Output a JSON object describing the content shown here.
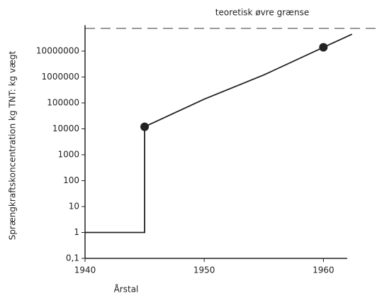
{
  "chart_data": {
    "type": "line",
    "xlabel": "Årstal",
    "ylabel": "Sprængkraftskoncentration kg TNT: kg vægt",
    "log_y": true,
    "xlim": [
      1940,
      1962
    ],
    "xticks": [
      1940,
      1950,
      1960
    ],
    "ylim": [
      0.1,
      100000000
    ],
    "yticks": [
      {
        "value": 0.1,
        "label": "0,1"
      },
      1,
      10,
      100,
      1000,
      10000,
      100000,
      1000000,
      10000000
    ],
    "series": [
      {
        "color": "#222222",
        "x": [
          1940,
          1945,
          1945,
          1950,
          1955,
          1960,
          1962.4
        ],
        "values": [
          1,
          1,
          12000,
          140000,
          1200000,
          14000000,
          45000000
        ]
      }
    ],
    "points": {
      "color": "#222222",
      "x": [
        1945,
        1960
      ],
      "values": [
        12000,
        14000000
      ]
    },
    "reference_lines": [
      {
        "value": 75000000,
        "label": "teoretisk øvre grænse"
      }
    ]
  }
}
